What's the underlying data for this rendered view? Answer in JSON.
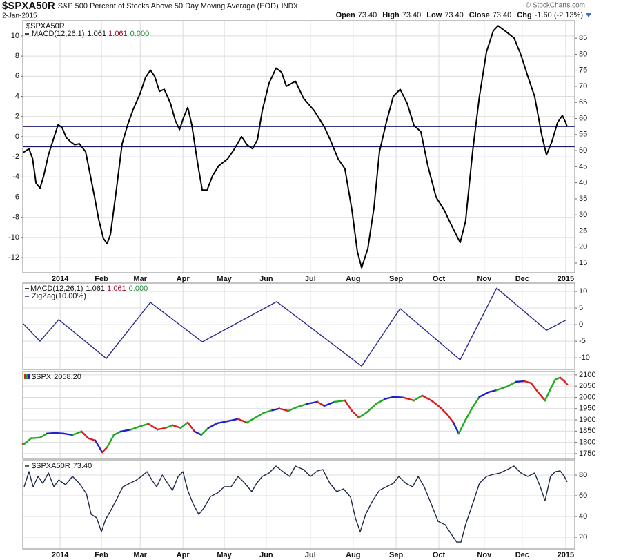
{
  "header": {
    "symbol": "$SPXA50R",
    "description": "S&P 500 Percent of Stocks Above 50 Day Moving Average (EOD)",
    "exchange": "INDX",
    "date": "2-Jan-2015",
    "copyright": "© StockCharts.com",
    "quote": [
      {
        "label": "Open",
        "value": "73.40"
      },
      {
        "label": "High",
        "value": "73.40"
      },
      {
        "label": "Low",
        "value": "73.40"
      },
      {
        "label": "Close",
        "value": "73.40"
      },
      {
        "label": "Chg",
        "value": "-1.60 (-2.13%)"
      }
    ]
  },
  "chart_data": [
    {
      "type": "line",
      "label": "$SPXA50R",
      "grid": true,
      "xlim": [
        -18.6,
        256.4
      ],
      "xticks": [
        {
          "value": 0,
          "label": "2014"
        },
        {
          "value": 20.6,
          "label": "Feb"
        },
        {
          "value": 39.9,
          "label": "Mar"
        },
        {
          "value": 61.2,
          "label": "Apr"
        },
        {
          "value": 81.8,
          "label": "May"
        },
        {
          "value": 102.7,
          "label": "Jun"
        },
        {
          "value": 124.7,
          "label": "Jul"
        },
        {
          "value": 146,
          "label": "Aug"
        },
        {
          "value": 167.4,
          "label": "Sep"
        },
        {
          "value": 188.7,
          "label": "Oct"
        },
        {
          "value": 211.3,
          "label": "Nov"
        },
        {
          "value": 230.2,
          "label": "Dec"
        },
        {
          "value": 251.9,
          "label": "2015"
        }
      ],
      "ylim": [
        -13.5,
        11.5
      ],
      "yticks": [
        -12,
        -10,
        -8,
        -6,
        -4,
        -2,
        0,
        2,
        4,
        6,
        8,
        10
      ],
      "y2lim": [
        12,
        90.4
      ],
      "y2ticks": [
        15,
        20,
        25,
        30,
        35,
        40,
        45,
        50,
        55,
        60,
        65,
        70,
        75,
        80,
        85
      ],
      "hlines": [
        1,
        -1
      ],
      "hline_color": "#1a1a6e",
      "series": [
        {
          "name": "MACD(12,26,1)",
          "legend_values": [
            "1.061",
            "1.061",
            "0.000"
          ],
          "color": "#000000",
          "x": [
            -18.6,
            -15.5,
            -13.7,
            -12,
            -10,
            -8.2,
            -5.8,
            -3.1,
            -1,
            1,
            3.1,
            5.2,
            7.2,
            9.6,
            12.7,
            14.8,
            17.2,
            19.2,
            21.6,
            23.4,
            25.1,
            27.8,
            30.9,
            33.7,
            36.4,
            39.9,
            42.6,
            45,
            47.1,
            49.5,
            51.9,
            55,
            57.4,
            59.5,
            61.5,
            63.6,
            65.6,
            68.4,
            70.8,
            73.2,
            75.9,
            79,
            83.5,
            86.9,
            90.4,
            93.1,
            95.9,
            98.3,
            100.7,
            104.1,
            107.6,
            110.3,
            112.7,
            117.2,
            121.3,
            126.5,
            131.6,
            135,
            138.5,
            141.9,
            145.4,
            148.1,
            150.2,
            153.3,
            156.4,
            159.1,
            162.5,
            166,
            169.4,
            172.9,
            176.3,
            179.7,
            183.2,
            187.3,
            191.4,
            195.5,
            199.3,
            202,
            205.5,
            208.9,
            212.4,
            215.8,
            218.2,
            221.6,
            226.1,
            229.6,
            233,
            236.4,
            239.9,
            242.3,
            245,
            247.8,
            250.2,
            251.9,
            252.6
          ],
          "values": [
            -1.6,
            -1.2,
            -2.2,
            -4.6,
            -5.1,
            -3.9,
            -1.8,
            -0.1,
            1.2,
            0.9,
            -0.1,
            -0.5,
            -0.8,
            -0.7,
            -1.5,
            -3.6,
            -6,
            -8.2,
            -10.1,
            -10.6,
            -9.7,
            -5.6,
            -0.7,
            1.2,
            2.7,
            4.3,
            5.9,
            6.6,
            6,
            4.5,
            4.7,
            3.3,
            1.6,
            0.7,
            1.9,
            2.9,
            1.2,
            -2.5,
            -5.3,
            -5.3,
            -3.9,
            -2.9,
            -2.2,
            -1.2,
            0,
            -0.8,
            -1.2,
            -0.3,
            2.6,
            5.3,
            6.8,
            6.4,
            5,
            5.5,
            3.8,
            2.6,
            1,
            -0.5,
            -2.2,
            -3.2,
            -7.3,
            -11.4,
            -13,
            -11.1,
            -7,
            -1.5,
            1.4,
            4,
            4.7,
            3.3,
            1.1,
            0.5,
            -2.9,
            -6,
            -7.3,
            -9,
            -10.5,
            -8.4,
            -1.5,
            4,
            8.4,
            10.5,
            11,
            10.5,
            9.8,
            8.1,
            6,
            4,
            0.2,
            -1.8,
            -0.5,
            1.4,
            2.1,
            1.4,
            1
          ]
        }
      ]
    },
    {
      "type": "line",
      "grid": true,
      "xlim": [
        -18.6,
        256.4
      ],
      "ylim": [
        -13.5,
        12.5
      ],
      "yticks": [
        -10,
        -5,
        0,
        5,
        10
      ],
      "indicator_legend": {
        "name": "MACD(12,26,1)",
        "values": [
          "1.061",
          "1.061",
          "0.000"
        ]
      },
      "series": [
        {
          "name": "ZigZag(10.00%)",
          "color": "#2b2b8c",
          "x": [
            -18.6,
            -10,
            -0.7,
            23,
            45,
            70.8,
            107.9,
            150.2,
            169.4,
            199.3,
            217.5,
            242.3,
            251.9
          ],
          "values": [
            0.4,
            -5,
            1.5,
            -10.2,
            6.7,
            -5.2,
            6.9,
            -12.5,
            4.8,
            -10.6,
            11,
            -1.7,
            1.3
          ]
        }
      ]
    },
    {
      "type": "price_bars",
      "grid": true,
      "xlim": [
        -18.6,
        256.4
      ],
      "ylim": [
        1725,
        2115
      ],
      "yticks": [
        1750,
        1800,
        1850,
        1900,
        1950,
        2000,
        2050,
        2100
      ],
      "series": [
        {
          "name": "$SPX",
          "legend_value": "2058.20",
          "x": [
            -17.9,
            -14.4,
            -10,
            -6.5,
            -2.4,
            1.7,
            6.2,
            10.7,
            14.1,
            17.5,
            21,
            23.4,
            26.8,
            30.2,
            35.4,
            40.5,
            44,
            48.5,
            52.6,
            56,
            60.1,
            63.6,
            67,
            70.4,
            73.9,
            78.4,
            83.5,
            88.7,
            93.1,
            97.3,
            101.4,
            105.8,
            109.3,
            113.7,
            117.9,
            123,
            128.2,
            131.6,
            136.8,
            141.9,
            145.4,
            148.8,
            152.9,
            157.4,
            161.9,
            166,
            171.1,
            176.3,
            180.4,
            184.9,
            189.3,
            192.8,
            195.9,
            198.6,
            202,
            205.5,
            208.9,
            213.4,
            217.5,
            222.7,
            227.1,
            231.3,
            234.7,
            238.1,
            241.6,
            244,
            246.7,
            249.1,
            251.2,
            252.6
          ],
          "values": [
            1793,
            1818,
            1821,
            1839,
            1842,
            1839,
            1833,
            1848,
            1818,
            1808,
            1756,
            1778,
            1833,
            1848,
            1857,
            1873,
            1882,
            1857,
            1864,
            1876,
            1864,
            1888,
            1848,
            1833,
            1864,
            1885,
            1894,
            1904,
            1888,
            1910,
            1931,
            1943,
            1950,
            1940,
            1956,
            1971,
            1980,
            1962,
            1980,
            1986,
            1940,
            1910,
            1934,
            1971,
            1993,
            2002,
            1999,
            1986,
            2008,
            1986,
            1956,
            1925,
            1888,
            1839,
            1900,
            1956,
            2002,
            2023,
            2032,
            2048,
            2069,
            2072,
            2063,
            2023,
            1986,
            2032,
            2079,
            2088,
            2072,
            2058
          ],
          "colors": [
            "#e01b1b",
            "#1faa1f",
            "#1faa1f",
            "#1faa1f",
            "#1f1fd0",
            "#1f1fd0",
            "#1f1fd0",
            "#1faa1f",
            "#e01b1b",
            "#e01b1b",
            "#1f1fd0",
            "#e01b1b",
            "#1faa1f",
            "#1faa1f",
            "#1f1fd0",
            "#1faa1f",
            "#1faa1f",
            "#e01b1b",
            "#e01b1b",
            "#1faa1f",
            "#e01b1b",
            "#1faa1f",
            "#e01b1b",
            "#1f1fd0",
            "#1faa1f",
            "#1f1fd0",
            "#1f1fd0",
            "#1f1fd0",
            "#e01b1b",
            "#1faa1f",
            "#1faa1f",
            "#1faa1f",
            "#1f1fd0",
            "#e01b1b",
            "#1faa1f",
            "#1faa1f",
            "#1f1fd0",
            "#e01b1b",
            "#1f1fd0",
            "#1faa1f",
            "#e01b1b",
            "#e01b1b",
            "#1faa1f",
            "#1faa1f",
            "#1faa1f",
            "#1f1fd0",
            "#1f1fd0",
            "#e01b1b",
            "#1faa1f",
            "#e01b1b",
            "#e01b1b",
            "#e01b1b",
            "#e01b1b",
            "#1f1fd0",
            "#1faa1f",
            "#1faa1f",
            "#1faa1f",
            "#1f1fd0",
            "#1f1fd0",
            "#1faa1f",
            "#1faa1f",
            "#1f1fd0",
            "#e01b1b",
            "#e01b1b",
            "#e01b1b",
            "#1faa1f",
            "#1faa1f",
            "#1faa1f",
            "#e01b1b",
            "#e01b1b"
          ]
        }
      ]
    },
    {
      "type": "line",
      "grid": true,
      "xlim": [
        -18.6,
        256.4
      ],
      "xticks": [
        {
          "value": 0,
          "label": "2014"
        },
        {
          "value": 20.6,
          "label": "Feb"
        },
        {
          "value": 39.9,
          "label": "Mar"
        },
        {
          "value": 61.2,
          "label": "Apr"
        },
        {
          "value": 81.8,
          "label": "May"
        },
        {
          "value": 102.7,
          "label": "Jun"
        },
        {
          "value": 124.7,
          "label": "Jul"
        },
        {
          "value": 146,
          "label": "Aug"
        },
        {
          "value": 167.4,
          "label": "Sep"
        },
        {
          "value": 188.7,
          "label": "Oct"
        },
        {
          "value": 211.3,
          "label": "Nov"
        },
        {
          "value": 230.2,
          "label": "Dec"
        },
        {
          "value": 251.9,
          "label": "2015"
        }
      ],
      "ylim": [
        8.7,
        94
      ],
      "yticks": [
        20,
        40,
        60,
        80
      ],
      "series": [
        {
          "name": "$SPXA50R",
          "legend_value": "73.40",
          "color": "#1c2a48",
          "x": [
            -17.9,
            -15.5,
            -13.4,
            -11,
            -8.6,
            -5.8,
            -3.1,
            -0.7,
            2.7,
            6.2,
            9.6,
            13.1,
            15.5,
            18.2,
            20.6,
            22.7,
            25.1,
            27.8,
            31.3,
            34.7,
            38.1,
            40.5,
            43.3,
            45.7,
            48.1,
            50.9,
            53.6,
            56,
            58.8,
            61.2,
            63.6,
            66.3,
            69.1,
            71.8,
            74.9,
            78.4,
            81.8,
            85.2,
            88.7,
            92.1,
            95.5,
            97.9,
            100.7,
            104.1,
            107.6,
            111,
            114.4,
            117.2,
            121.3,
            124.7,
            128.2,
            130.9,
            134.4,
            137.8,
            141.2,
            144.7,
            147.1,
            149.5,
            152.2,
            155.7,
            159.1,
            162.5,
            166,
            168.7,
            172.2,
            175.6,
            178.4,
            181.4,
            184.9,
            188.3,
            191.8,
            195.2,
            197.6,
            199.7,
            202,
            205.5,
            208.9,
            212.4,
            215.8,
            219.2,
            222.7,
            226.1,
            229.6,
            233,
            236.4,
            239.2,
            241.6,
            244.3,
            246.7,
            249.1,
            251.2,
            252.6
          ],
          "values": [
            68.7,
            83.3,
            68.7,
            78.7,
            72,
            82,
            68.7,
            75.3,
            70.7,
            78.7,
            72,
            62,
            42,
            38.7,
            25.3,
            37.3,
            45.3,
            55.3,
            68.7,
            72,
            75.3,
            78.7,
            83.3,
            75.3,
            68.7,
            80,
            72,
            65.3,
            78.7,
            83.3,
            65.3,
            52,
            42,
            48.7,
            59.3,
            62.7,
            68.7,
            68.7,
            78.7,
            72,
            64,
            72,
            78.7,
            82,
            88.7,
            83.3,
            78.7,
            88.7,
            85.3,
            78.7,
            84,
            85.3,
            72,
            64,
            66.7,
            58.7,
            38.7,
            25.3,
            42,
            55.3,
            65.3,
            68.7,
            72,
            78.7,
            72,
            68.7,
            78.7,
            68.7,
            52,
            35.3,
            32,
            22,
            15.3,
            15.3,
            32,
            52,
            72,
            78.7,
            80.7,
            82,
            85.3,
            88.7,
            82,
            78.7,
            82,
            68.7,
            55.3,
            78.7,
            83.3,
            84,
            78.7,
            73.4
          ]
        }
      ]
    }
  ]
}
